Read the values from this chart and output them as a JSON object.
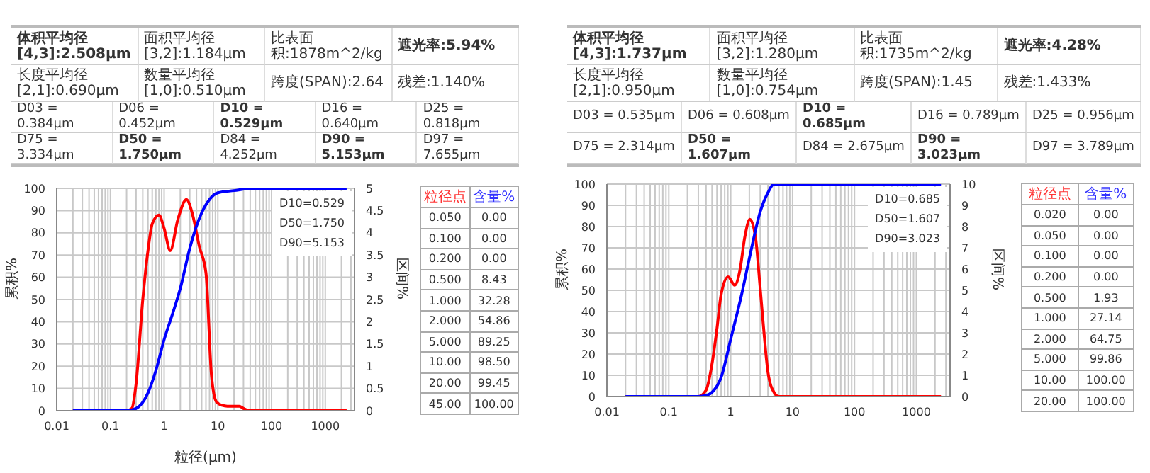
{
  "chart_data": [
    {
      "type": "other",
      "annotations": [
        "体积平均径[4,3]:2.508μm",
        "面积平均径[3,2]:1.184μm",
        "比表面积:1878m^2/kg",
        "遮光率:5.94%",
        "长度平均径[2,1]:0.690μm",
        "数量平均径[1,0]:0.510μm",
        "跨度(SPAN):2.64",
        "残差:1.140%",
        "D03 = 0.384μm",
        "D06 = 0.452μm",
        "D10 = 0.529μm",
        "D16 = 0.640μm",
        "D25 = 0.818μm",
        "D75 = 3.334μm",
        "D50 = 1.750μm",
        "D84 = 4.252μm",
        "D90 = 5.153μm",
        "D97 = 7.655μm"
      ]
    },
    {
      "type": "line",
      "xlabel": "粒径(μm)",
      "ylabel": "累积%",
      "y2label": "区间%",
      "log": "x",
      "grid": true,
      "marker": "none",
      "line_style": "solid",
      "xlim": [
        0.01,
        3500
      ],
      "xticks": [
        0.01,
        {
          "value": 0.02,
          "label": null
        },
        {
          "value": 0.03,
          "label": null
        },
        {
          "value": 0.04,
          "label": null
        },
        {
          "value": 0.05,
          "label": null
        },
        {
          "value": 0.06,
          "label": null
        },
        {
          "value": 0.07,
          "label": null
        },
        {
          "value": 0.08,
          "label": null
        },
        {
          "value": 0.09,
          "label": null
        },
        0.1,
        {
          "value": 0.2,
          "label": null
        },
        {
          "value": 0.3,
          "label": null
        },
        {
          "value": 0.4,
          "label": null
        },
        {
          "value": 0.5,
          "label": null
        },
        {
          "value": 0.6,
          "label": null
        },
        {
          "value": 0.7,
          "label": null
        },
        {
          "value": 0.8,
          "label": null
        },
        {
          "value": 0.9,
          "label": null
        },
        1,
        {
          "value": 2,
          "label": null
        },
        {
          "value": 3,
          "label": null
        },
        {
          "value": 4,
          "label": null
        },
        {
          "value": 5,
          "label": null
        },
        {
          "value": 6,
          "label": null
        },
        {
          "value": 7,
          "label": null
        },
        {
          "value": 8,
          "label": null
        },
        {
          "value": 9,
          "label": null
        },
        10,
        {
          "value": 20,
          "label": null
        },
        {
          "value": 30,
          "label": null
        },
        {
          "value": 40,
          "label": null
        },
        {
          "value": 50,
          "label": null
        },
        {
          "value": 60,
          "label": null
        },
        {
          "value": 70,
          "label": null
        },
        {
          "value": 80,
          "label": null
        },
        {
          "value": 90,
          "label": null
        },
        100,
        {
          "value": 200,
          "label": null
        },
        {
          "value": 300,
          "label": null
        },
        {
          "value": 400,
          "label": null
        },
        {
          "value": 500,
          "label": null
        },
        {
          "value": 600,
          "label": null
        },
        {
          "value": 700,
          "label": null
        },
        {
          "value": 800,
          "label": null
        },
        {
          "value": 900,
          "label": null
        },
        1000,
        {
          "value": 2000,
          "label": null
        },
        {
          "value": 3000,
          "label": null
        }
      ],
      "ylim": [
        0,
        100
      ],
      "yticks": [
        0,
        10,
        20,
        30,
        40,
        50,
        60,
        70,
        80,
        90,
        100
      ],
      "y2lim": [
        0,
        5
      ],
      "y2ticks": [
        0,
        0.5,
        1,
        1.5,
        2,
        2.5,
        3,
        3.5,
        4,
        4.5,
        5
      ],
      "series": [
        {
          "color": "#ff0000",
          "axis": "y2",
          "x": [
            0.02,
            0.2,
            0.25,
            0.3,
            0.4,
            0.5,
            0.6,
            0.8,
            1,
            1.3,
            1.8,
            2.6,
            3.4,
            4.5,
            6,
            7.6,
            9.4,
            12,
            15,
            20,
            25,
            30,
            40,
            100,
            2500
          ],
          "values": [
            0,
            0,
            0.05,
            0.6,
            2.5,
            3.6,
            4.2,
            4.4,
            4.1,
            3.6,
            4.3,
            4.75,
            4.4,
            3.7,
            3.1,
            0.8,
            0.2,
            0.12,
            0.1,
            0.1,
            0.1,
            0.05,
            0,
            0,
            0
          ]
        },
        {
          "color": "#0000ff",
          "axis": "y",
          "x": [
            0.02,
            0.2,
            0.3,
            0.5,
            0.7,
            1,
            1.5,
            2,
            3,
            4,
            5,
            7,
            10,
            20,
            45,
            100,
            2500
          ],
          "values": [
            0,
            0,
            1,
            8,
            18,
            32,
            45,
            55,
            73,
            83,
            89,
            95,
            98,
            99,
            100,
            100,
            100
          ]
        }
      ],
      "annotations": [
        "D10=0.529",
        "D50=1.750",
        "D90=5.153"
      ]
    },
    {
      "type": "other",
      "annotations": [
        "粒径点",
        "含量%",
        "0.050",
        "0.00",
        "0.100",
        "0.00",
        "0.200",
        "0.00",
        "0.500",
        "8.43",
        "1.000",
        "32.28",
        "2.000",
        "54.86",
        "5.000",
        "89.25",
        "10.00",
        "98.50",
        "20.00",
        "99.45",
        "45.00",
        "100.00"
      ]
    },
    {
      "type": "other",
      "annotations": [
        "体积平均径[4,3]:1.737μm",
        "面积平均径[3,2]:1.280μm",
        "比表面积:1735m^2/kg",
        "遮光率:4.28%",
        "长度平均径[2,1]:0.950μm",
        "数量平均径[1,0]:0.754μm",
        "跨度(SPAN):1.45",
        "残差:1.433%",
        "D03 = 0.535μm",
        "D06 = 0.608μm",
        "D10 = 0.685μm",
        "D16 = 0.789μm",
        "D25 = 0.956μm",
        "D75 = 2.314μm",
        "D50 = 1.607μm",
        "D84 = 2.675μm",
        "D90 = 3.023μm",
        "D97 = 3.789μm"
      ]
    },
    {
      "type": "line",
      "ylabel": "累积%",
      "y2label": "区间%",
      "log": "x",
      "grid": true,
      "marker": "none",
      "line_style": "solid",
      "xlim": [
        0.01,
        3500
      ],
      "xticks": [
        0.01,
        {
          "value": 0.02,
          "label": null
        },
        {
          "value": 0.03,
          "label": null
        },
        {
          "value": 0.04,
          "label": null
        },
        {
          "value": 0.05,
          "label": null
        },
        {
          "value": 0.06,
          "label": null
        },
        {
          "value": 0.07,
          "label": null
        },
        {
          "value": 0.08,
          "label": null
        },
        {
          "value": 0.09,
          "label": null
        },
        0.1,
        {
          "value": 0.2,
          "label": null
        },
        {
          "value": 0.3,
          "label": null
        },
        {
          "value": 0.4,
          "label": null
        },
        {
          "value": 0.5,
          "label": null
        },
        {
          "value": 0.6,
          "label": null
        },
        {
          "value": 0.7,
          "label": null
        },
        {
          "value": 0.8,
          "label": null
        },
        {
          "value": 0.9,
          "label": null
        },
        1,
        {
          "value": 2,
          "label": null
        },
        {
          "value": 3,
          "label": null
        },
        {
          "value": 4,
          "label": null
        },
        {
          "value": 5,
          "label": null
        },
        {
          "value": 6,
          "label": null
        },
        {
          "value": 7,
          "label": null
        },
        {
          "value": 8,
          "label": null
        },
        {
          "value": 9,
          "label": null
        },
        10,
        {
          "value": 20,
          "label": null
        },
        {
          "value": 30,
          "label": null
        },
        {
          "value": 40,
          "label": null
        },
        {
          "value": 50,
          "label": null
        },
        {
          "value": 60,
          "label": null
        },
        {
          "value": 70,
          "label": null
        },
        {
          "value": 80,
          "label": null
        },
        {
          "value": 90,
          "label": null
        },
        100,
        {
          "value": 200,
          "label": null
        },
        {
          "value": 300,
          "label": null
        },
        {
          "value": 400,
          "label": null
        },
        {
          "value": 500,
          "label": null
        },
        {
          "value": 600,
          "label": null
        },
        {
          "value": 700,
          "label": null
        },
        {
          "value": 800,
          "label": null
        },
        {
          "value": 900,
          "label": null
        },
        1000,
        {
          "value": 2000,
          "label": null
        },
        {
          "value": 3000,
          "label": null
        }
      ],
      "ylim": [
        0,
        100
      ],
      "yticks": [
        0,
        10,
        20,
        30,
        40,
        50,
        60,
        70,
        80,
        90,
        100
      ],
      "y2lim": [
        0,
        10
      ],
      "y2ticks": [
        0,
        1,
        2,
        3,
        4,
        5,
        6,
        7,
        8,
        9,
        10
      ],
      "series": [
        {
          "color": "#ff0000",
          "axis": "y2",
          "x": [
            0.02,
            0.3,
            0.4,
            0.5,
            0.6,
            0.7,
            0.91,
            1.16,
            1.4,
            1.7,
            2.04,
            2.5,
            3,
            3.5,
            4,
            5,
            6,
            100,
            2500
          ],
          "values": [
            0,
            0,
            0.3,
            1.55,
            3.2,
            4.8,
            5.63,
            5.24,
            5.9,
            7.55,
            8.34,
            7.55,
            5.07,
            2.8,
            1.14,
            0.2,
            0,
            0,
            0
          ]
        },
        {
          "color": "#0000ff",
          "axis": "y",
          "x": [
            0.02,
            0.3,
            0.4,
            0.5,
            0.7,
            1,
            1.5,
            2,
            3,
            4,
            5,
            6,
            100,
            2500
          ],
          "values": [
            0,
            0,
            0.5,
            2,
            9,
            27,
            48,
            65,
            87,
            96,
            100,
            100,
            100,
            100
          ]
        }
      ],
      "annotations": [
        "D10=0.685",
        "D50=1.607",
        "D90=3.023"
      ]
    },
    {
      "type": "other",
      "annotations": [
        "粒径点",
        "含量%",
        "0.020",
        "0.00",
        "0.050",
        "0.00",
        "0.100",
        "0.00",
        "0.200",
        "0.00",
        "0.500",
        "1.93",
        "1.000",
        "27.14",
        "2.000",
        "64.75",
        "5.000",
        "99.86",
        "10.00",
        "100.00",
        "20.00",
        "100.00"
      ]
    }
  ]
}
